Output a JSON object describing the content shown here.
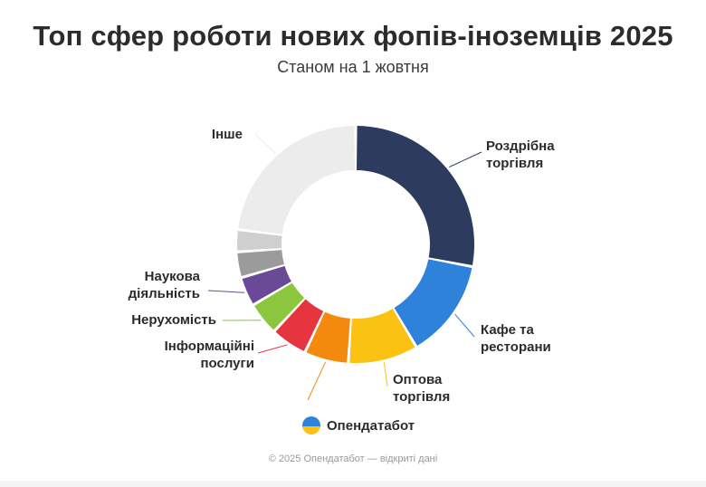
{
  "chart_data": {
    "type": "pie",
    "title": "Топ сфер роботи нових фопів-іноземців 2025",
    "subtitle": "Станом на 1 жовтня",
    "series": [
      {
        "name": "Роздрібна торгівля",
        "value": 28,
        "color": "#2c3b5e",
        "label_lines": [
          "Роздрібна",
          "торгівля"
        ]
      },
      {
        "name": "Кафе та ресторани",
        "value": 13.5,
        "color": "#2f82d9",
        "label_lines": [
          "Кафе та",
          "ресторани"
        ]
      },
      {
        "name": "Оптова торгівля",
        "value": 9.5,
        "color": "#fbc213",
        "label_lines": [
          "Оптова",
          "торгівля"
        ]
      },
      {
        "name": "",
        "value": 6,
        "color": "#f5890d",
        "label_lines": []
      },
      {
        "name": "Інформаційні послуги",
        "value": 5,
        "color": "#e6353f",
        "label_lines": [
          "Інформаційні",
          "послуги"
        ]
      },
      {
        "name": "Нерухомість",
        "value": 4.5,
        "color": "#8cc63f",
        "label_lines": [
          "Нерухомість"
        ]
      },
      {
        "name": "Наукова діяльність",
        "value": 4,
        "color": "#6a4a96",
        "label_lines": [
          "Наукова",
          "діяльність"
        ]
      },
      {
        "name": "",
        "value": 3.5,
        "color": "#9b9b9b",
        "label_lines": []
      },
      {
        "name": "",
        "value": 3,
        "color": "#cfcfcf",
        "label_lines": []
      },
      {
        "name": "Інше",
        "value": 23,
        "color": "#ececec",
        "label_lines": [
          "Інше"
        ]
      }
    ]
  },
  "brand": {
    "name": "Опендатабот"
  },
  "footer": {
    "text": "© 2025 Опендатабот — відкриті дані"
  }
}
